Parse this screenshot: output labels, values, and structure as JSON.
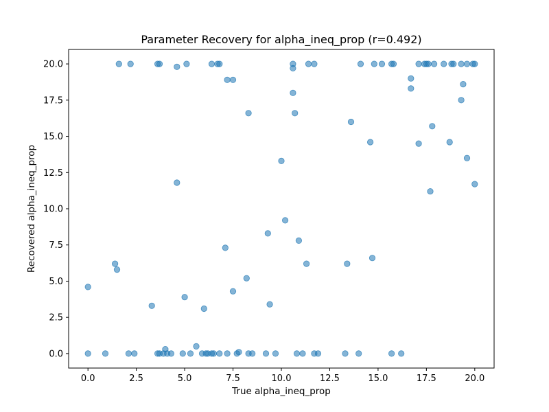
{
  "chart_data": {
    "type": "scatter",
    "title": "Parameter Recovery for alpha_ineq_prop (r=0.492)",
    "xlabel": "True alpha_ineq_prop",
    "ylabel": "Recovered alpha_ineq_prop",
    "xlim": [
      -1.0,
      21.0
    ],
    "ylim": [
      -1.0,
      21.0
    ],
    "xticks": [
      0.0,
      2.5,
      5.0,
      7.5,
      10.0,
      12.5,
      15.0,
      17.5,
      20.0
    ],
    "xtick_labels": [
      "0.0",
      "2.5",
      "5.0",
      "7.5",
      "10.0",
      "12.5",
      "15.0",
      "17.5",
      "20.0"
    ],
    "yticks": [
      0.0,
      2.5,
      5.0,
      7.5,
      10.0,
      12.5,
      15.0,
      17.5,
      20.0
    ],
    "ytick_labels": [
      "0.0",
      "2.5",
      "5.0",
      "7.5",
      "10.0",
      "12.5",
      "15.0",
      "17.5",
      "20.0"
    ],
    "grid": false,
    "marker_color": "#1f77b4",
    "marker_alpha": 0.55,
    "points": [
      {
        "x": 0.0,
        "y": 4.6
      },
      {
        "x": 1.4,
        "y": 6.2
      },
      {
        "x": 1.5,
        "y": 5.8
      },
      {
        "x": 3.3,
        "y": 3.3
      },
      {
        "x": 4.6,
        "y": 11.8
      },
      {
        "x": 5.0,
        "y": 3.9
      },
      {
        "x": 5.6,
        "y": 0.5
      },
      {
        "x": 6.0,
        "y": 3.1
      },
      {
        "x": 7.1,
        "y": 7.3
      },
      {
        "x": 7.5,
        "y": 4.3
      },
      {
        "x": 7.8,
        "y": 0.1
      },
      {
        "x": 8.2,
        "y": 5.2
      },
      {
        "x": 9.3,
        "y": 8.3
      },
      {
        "x": 9.4,
        "y": 3.4
      },
      {
        "x": 10.0,
        "y": 13.3
      },
      {
        "x": 10.2,
        "y": 9.2
      },
      {
        "x": 10.9,
        "y": 7.8
      },
      {
        "x": 11.3,
        "y": 6.2
      },
      {
        "x": 13.4,
        "y": 6.2
      },
      {
        "x": 14.6,
        "y": 14.6
      },
      {
        "x": 14.7,
        "y": 6.6
      },
      {
        "x": 13.6,
        "y": 16.0
      },
      {
        "x": 8.3,
        "y": 16.6
      },
      {
        "x": 10.7,
        "y": 16.6
      },
      {
        "x": 10.6,
        "y": 18.0
      },
      {
        "x": 7.2,
        "y": 18.9
      },
      {
        "x": 7.5,
        "y": 18.9
      },
      {
        "x": 16.7,
        "y": 19.0
      },
      {
        "x": 16.7,
        "y": 18.3
      },
      {
        "x": 19.4,
        "y": 18.6
      },
      {
        "x": 19.3,
        "y": 17.5
      },
      {
        "x": 17.8,
        "y": 15.7
      },
      {
        "x": 17.1,
        "y": 14.5
      },
      {
        "x": 18.7,
        "y": 14.6
      },
      {
        "x": 19.6,
        "y": 13.5
      },
      {
        "x": 17.7,
        "y": 11.2
      },
      {
        "x": 20.0,
        "y": 11.7
      },
      {
        "x": 1.6,
        "y": 20.0
      },
      {
        "x": 2.2,
        "y": 20.0
      },
      {
        "x": 3.6,
        "y": 20.0
      },
      {
        "x": 3.7,
        "y": 20.0
      },
      {
        "x": 4.6,
        "y": 19.8
      },
      {
        "x": 5.1,
        "y": 20.0
      },
      {
        "x": 6.4,
        "y": 20.0
      },
      {
        "x": 6.7,
        "y": 20.0
      },
      {
        "x": 6.8,
        "y": 20.0
      },
      {
        "x": 10.6,
        "y": 20.0
      },
      {
        "x": 10.6,
        "y": 19.7
      },
      {
        "x": 11.4,
        "y": 20.0
      },
      {
        "x": 11.7,
        "y": 20.0
      },
      {
        "x": 14.1,
        "y": 20.0
      },
      {
        "x": 14.8,
        "y": 20.0
      },
      {
        "x": 15.2,
        "y": 20.0
      },
      {
        "x": 15.7,
        "y": 20.0
      },
      {
        "x": 15.8,
        "y": 20.0
      },
      {
        "x": 17.1,
        "y": 20.0
      },
      {
        "x": 17.4,
        "y": 20.0
      },
      {
        "x": 17.5,
        "y": 20.0
      },
      {
        "x": 17.6,
        "y": 20.0
      },
      {
        "x": 17.9,
        "y": 20.0
      },
      {
        "x": 18.4,
        "y": 20.0
      },
      {
        "x": 18.8,
        "y": 20.0
      },
      {
        "x": 18.9,
        "y": 20.0
      },
      {
        "x": 19.3,
        "y": 20.0
      },
      {
        "x": 19.6,
        "y": 20.0
      },
      {
        "x": 19.9,
        "y": 20.0
      },
      {
        "x": 20.0,
        "y": 20.0
      },
      {
        "x": 0.0,
        "y": 0.0
      },
      {
        "x": 0.9,
        "y": 0.0
      },
      {
        "x": 2.1,
        "y": 0.0
      },
      {
        "x": 2.4,
        "y": 0.0
      },
      {
        "x": 3.6,
        "y": 0.0
      },
      {
        "x": 3.7,
        "y": 0.0
      },
      {
        "x": 3.9,
        "y": 0.0
      },
      {
        "x": 4.0,
        "y": 0.3
      },
      {
        "x": 4.1,
        "y": 0.0
      },
      {
        "x": 4.3,
        "y": 0.0
      },
      {
        "x": 4.9,
        "y": 0.0
      },
      {
        "x": 5.3,
        "y": 0.0
      },
      {
        "x": 5.9,
        "y": 0.0
      },
      {
        "x": 6.1,
        "y": 0.0
      },
      {
        "x": 6.2,
        "y": 0.0
      },
      {
        "x": 6.4,
        "y": 0.0
      },
      {
        "x": 6.5,
        "y": 0.0
      },
      {
        "x": 6.8,
        "y": 0.0
      },
      {
        "x": 7.2,
        "y": 0.0
      },
      {
        "x": 7.7,
        "y": 0.0
      },
      {
        "x": 8.3,
        "y": 0.0
      },
      {
        "x": 8.5,
        "y": 0.0
      },
      {
        "x": 9.2,
        "y": 0.0
      },
      {
        "x": 9.7,
        "y": 0.0
      },
      {
        "x": 10.8,
        "y": 0.0
      },
      {
        "x": 11.1,
        "y": 0.0
      },
      {
        "x": 11.7,
        "y": 0.0
      },
      {
        "x": 11.9,
        "y": 0.0
      },
      {
        "x": 13.3,
        "y": 0.0
      },
      {
        "x": 14.0,
        "y": 0.0
      },
      {
        "x": 15.7,
        "y": 0.0
      },
      {
        "x": 16.2,
        "y": 0.0
      }
    ]
  }
}
